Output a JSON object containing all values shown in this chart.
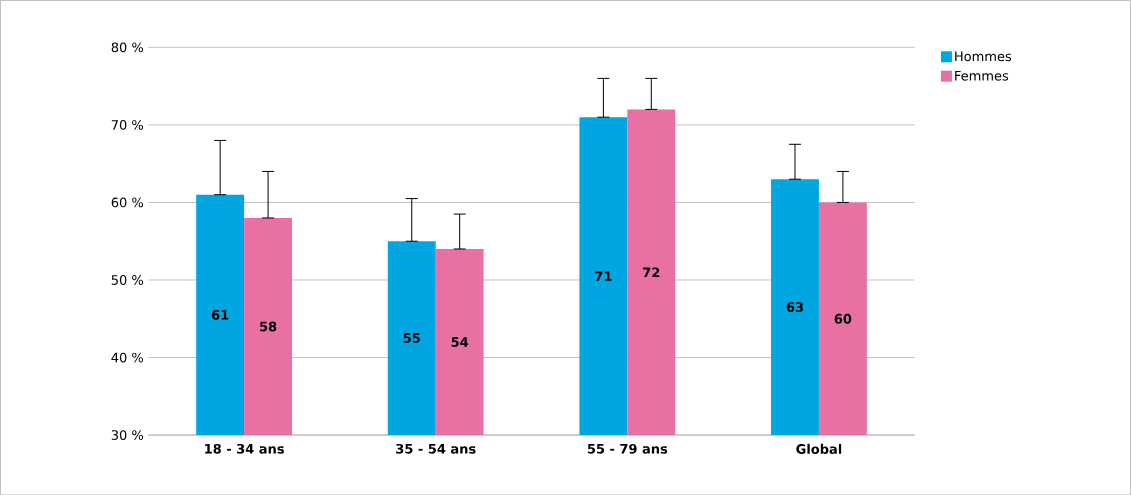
{
  "chart_data": {
    "type": "bar",
    "categories": [
      "18 - 34 ans",
      "35 - 54 ans",
      "55 - 79 ans",
      "Global"
    ],
    "series": [
      {
        "name": "Hommes",
        "color": "#00a6e1",
        "values": [
          61,
          55,
          71,
          63
        ],
        "errors": [
          [
            61,
            68
          ],
          [
            55,
            60.5
          ],
          [
            71,
            76
          ],
          [
            63,
            67.5
          ]
        ]
      },
      {
        "name": "Femmes",
        "color": "#e970a2",
        "values": [
          58,
          54,
          72,
          60
        ],
        "errors": [
          [
            58,
            64
          ],
          [
            54,
            58.5
          ],
          [
            72,
            76
          ],
          [
            60,
            64
          ]
        ]
      }
    ],
    "ylim": [
      30,
      80
    ],
    "yticks": [
      {
        "value": 30,
        "label": "30 %"
      },
      {
        "value": 40,
        "label": "40 %"
      },
      {
        "value": 50,
        "label": "50 %"
      },
      {
        "value": 60,
        "label": "60 %"
      },
      {
        "value": 70,
        "label": "70 %"
      },
      {
        "value": 80,
        "label": "80 %"
      }
    ],
    "grid": "y",
    "legend": "top right",
    "data_labels": true
  }
}
